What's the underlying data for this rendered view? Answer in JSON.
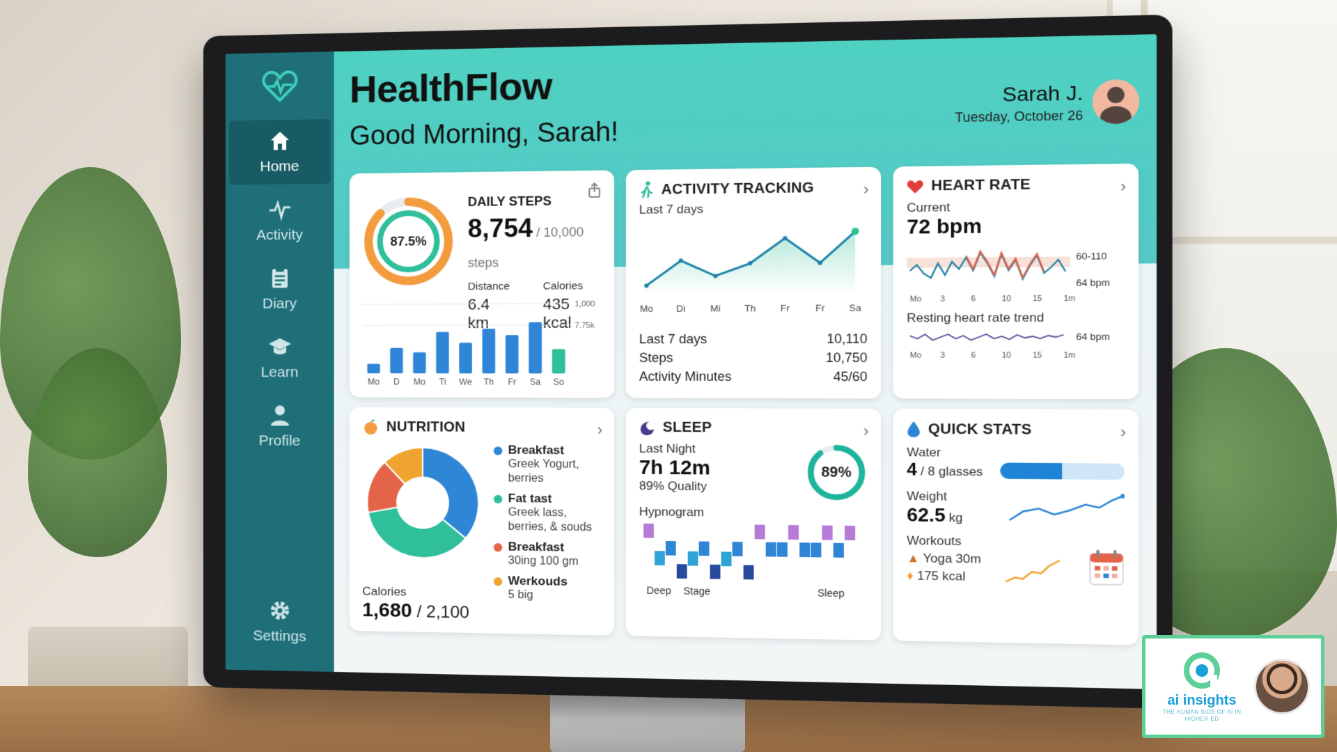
{
  "app": {
    "title": "HealthFlow",
    "greeting": "Good Morning, Sarah!",
    "user_name": "Sarah J.",
    "date": "Tuesday, October 26"
  },
  "sidebar": {
    "items": [
      {
        "label": "Home",
        "icon": "home-icon",
        "active": true
      },
      {
        "label": "Activity",
        "icon": "pulse-icon",
        "active": false
      },
      {
        "label": "Diary",
        "icon": "clipboard-icon",
        "active": false
      },
      {
        "label": "Learn",
        "icon": "graduation-cap-icon",
        "active": false
      },
      {
        "label": "Profile",
        "icon": "person-icon",
        "active": false
      }
    ],
    "settings": {
      "label": "Settings",
      "icon": "gear-icon"
    }
  },
  "steps": {
    "title": "DAILY STEPS",
    "ring_label": "87.5%",
    "ring_fraction": 0.875,
    "value": "8,754",
    "goal": " / 10,000 steps",
    "distance_label": "Distance",
    "distance_value": "6.4 km",
    "calories_label": "Calories",
    "calories_value": "435 kcal",
    "axis_top": "1,000",
    "axis_mid": "7.75k",
    "days": [
      "Mo",
      "D",
      "Mo",
      "Ti",
      "We",
      "Th",
      "Fr",
      "Sa",
      "So"
    ],
    "levels": [
      0.15,
      0.4,
      0.33,
      0.65,
      0.48,
      0.7,
      0.6,
      0.8,
      0.38
    ]
  },
  "activity": {
    "title": "ACTIVITY TRACKING",
    "subtitle": "Last 7 days",
    "days": [
      "Mo",
      "Di",
      "Mi",
      "Th",
      "Fr",
      "Fr",
      "Sa"
    ],
    "levels": [
      0.1,
      0.5,
      0.25,
      0.45,
      0.85,
      0.45,
      0.95
    ],
    "stats": [
      {
        "label": "Last 7 days",
        "value": "10,110"
      },
      {
        "label": "Steps",
        "value": "10,750"
      },
      {
        "label": "Activity Minutes",
        "value": "45/60"
      }
    ]
  },
  "heart": {
    "title": "HEART RATE",
    "current_label": "Current",
    "current_value": "72 bpm",
    "range_label": "60-110",
    "avg_label": "64 bpm",
    "axis": [
      "Mo",
      "3",
      "6",
      "10",
      "15",
      "1m"
    ],
    "trend_label": "Resting heart rate trend",
    "trend_value": "64 bpm",
    "trend_axis": [
      "Mo",
      "3",
      "6",
      "10",
      "15",
      "1m"
    ]
  },
  "nutrition": {
    "title": "NUTRITION",
    "legend": [
      {
        "title": "Breakfast",
        "desc": "Greek Yogurt, berries",
        "color": "#2f86d6"
      },
      {
        "title": "Fat tast",
        "desc": "Greek lass, berries, & souds",
        "color": "#2fbf9a"
      },
      {
        "title": "Breakfast",
        "desc": "30ing 100 gm",
        "color": "#e4644a"
      },
      {
        "title": "Werkouds",
        "desc": "5 big",
        "color": "#f0a430"
      }
    ],
    "calories_label": "Calories",
    "calories_value": "1,680",
    "calories_goal": " / 2,100"
  },
  "sleep": {
    "title": "SLEEP",
    "last_label": "Last Night",
    "duration": "7h 12m",
    "quality": "89% Quality",
    "ring_label": "89%",
    "ring_fraction": 0.89,
    "hypnogram_label": "Hypnogram",
    "x_labels": [
      "Deep",
      "Stage",
      "Sleep"
    ]
  },
  "quick": {
    "title": "QUICK STATS",
    "water_label": "Water",
    "water_value": "4",
    "water_unit": " / 8 glasses",
    "water_fraction": 0.5,
    "weight_label": "Weight",
    "weight_value": "62.5",
    "weight_unit": " kg",
    "workouts_label": "Workouts",
    "workout_1": "Yoga 30m",
    "workout_2": "175 kcal"
  },
  "badge": {
    "brand": "ai insights",
    "tagline": "THE HUMAN SIDE OF AI IN HIGHER ED"
  },
  "colors": {
    "sidebar": "#1f6f79",
    "header_gradient_start": "#4ed1c0",
    "accent_blue": "#2f86d6",
    "accent_teal": "#2fbf9a",
    "heart_red": "#e23b3b"
  }
}
